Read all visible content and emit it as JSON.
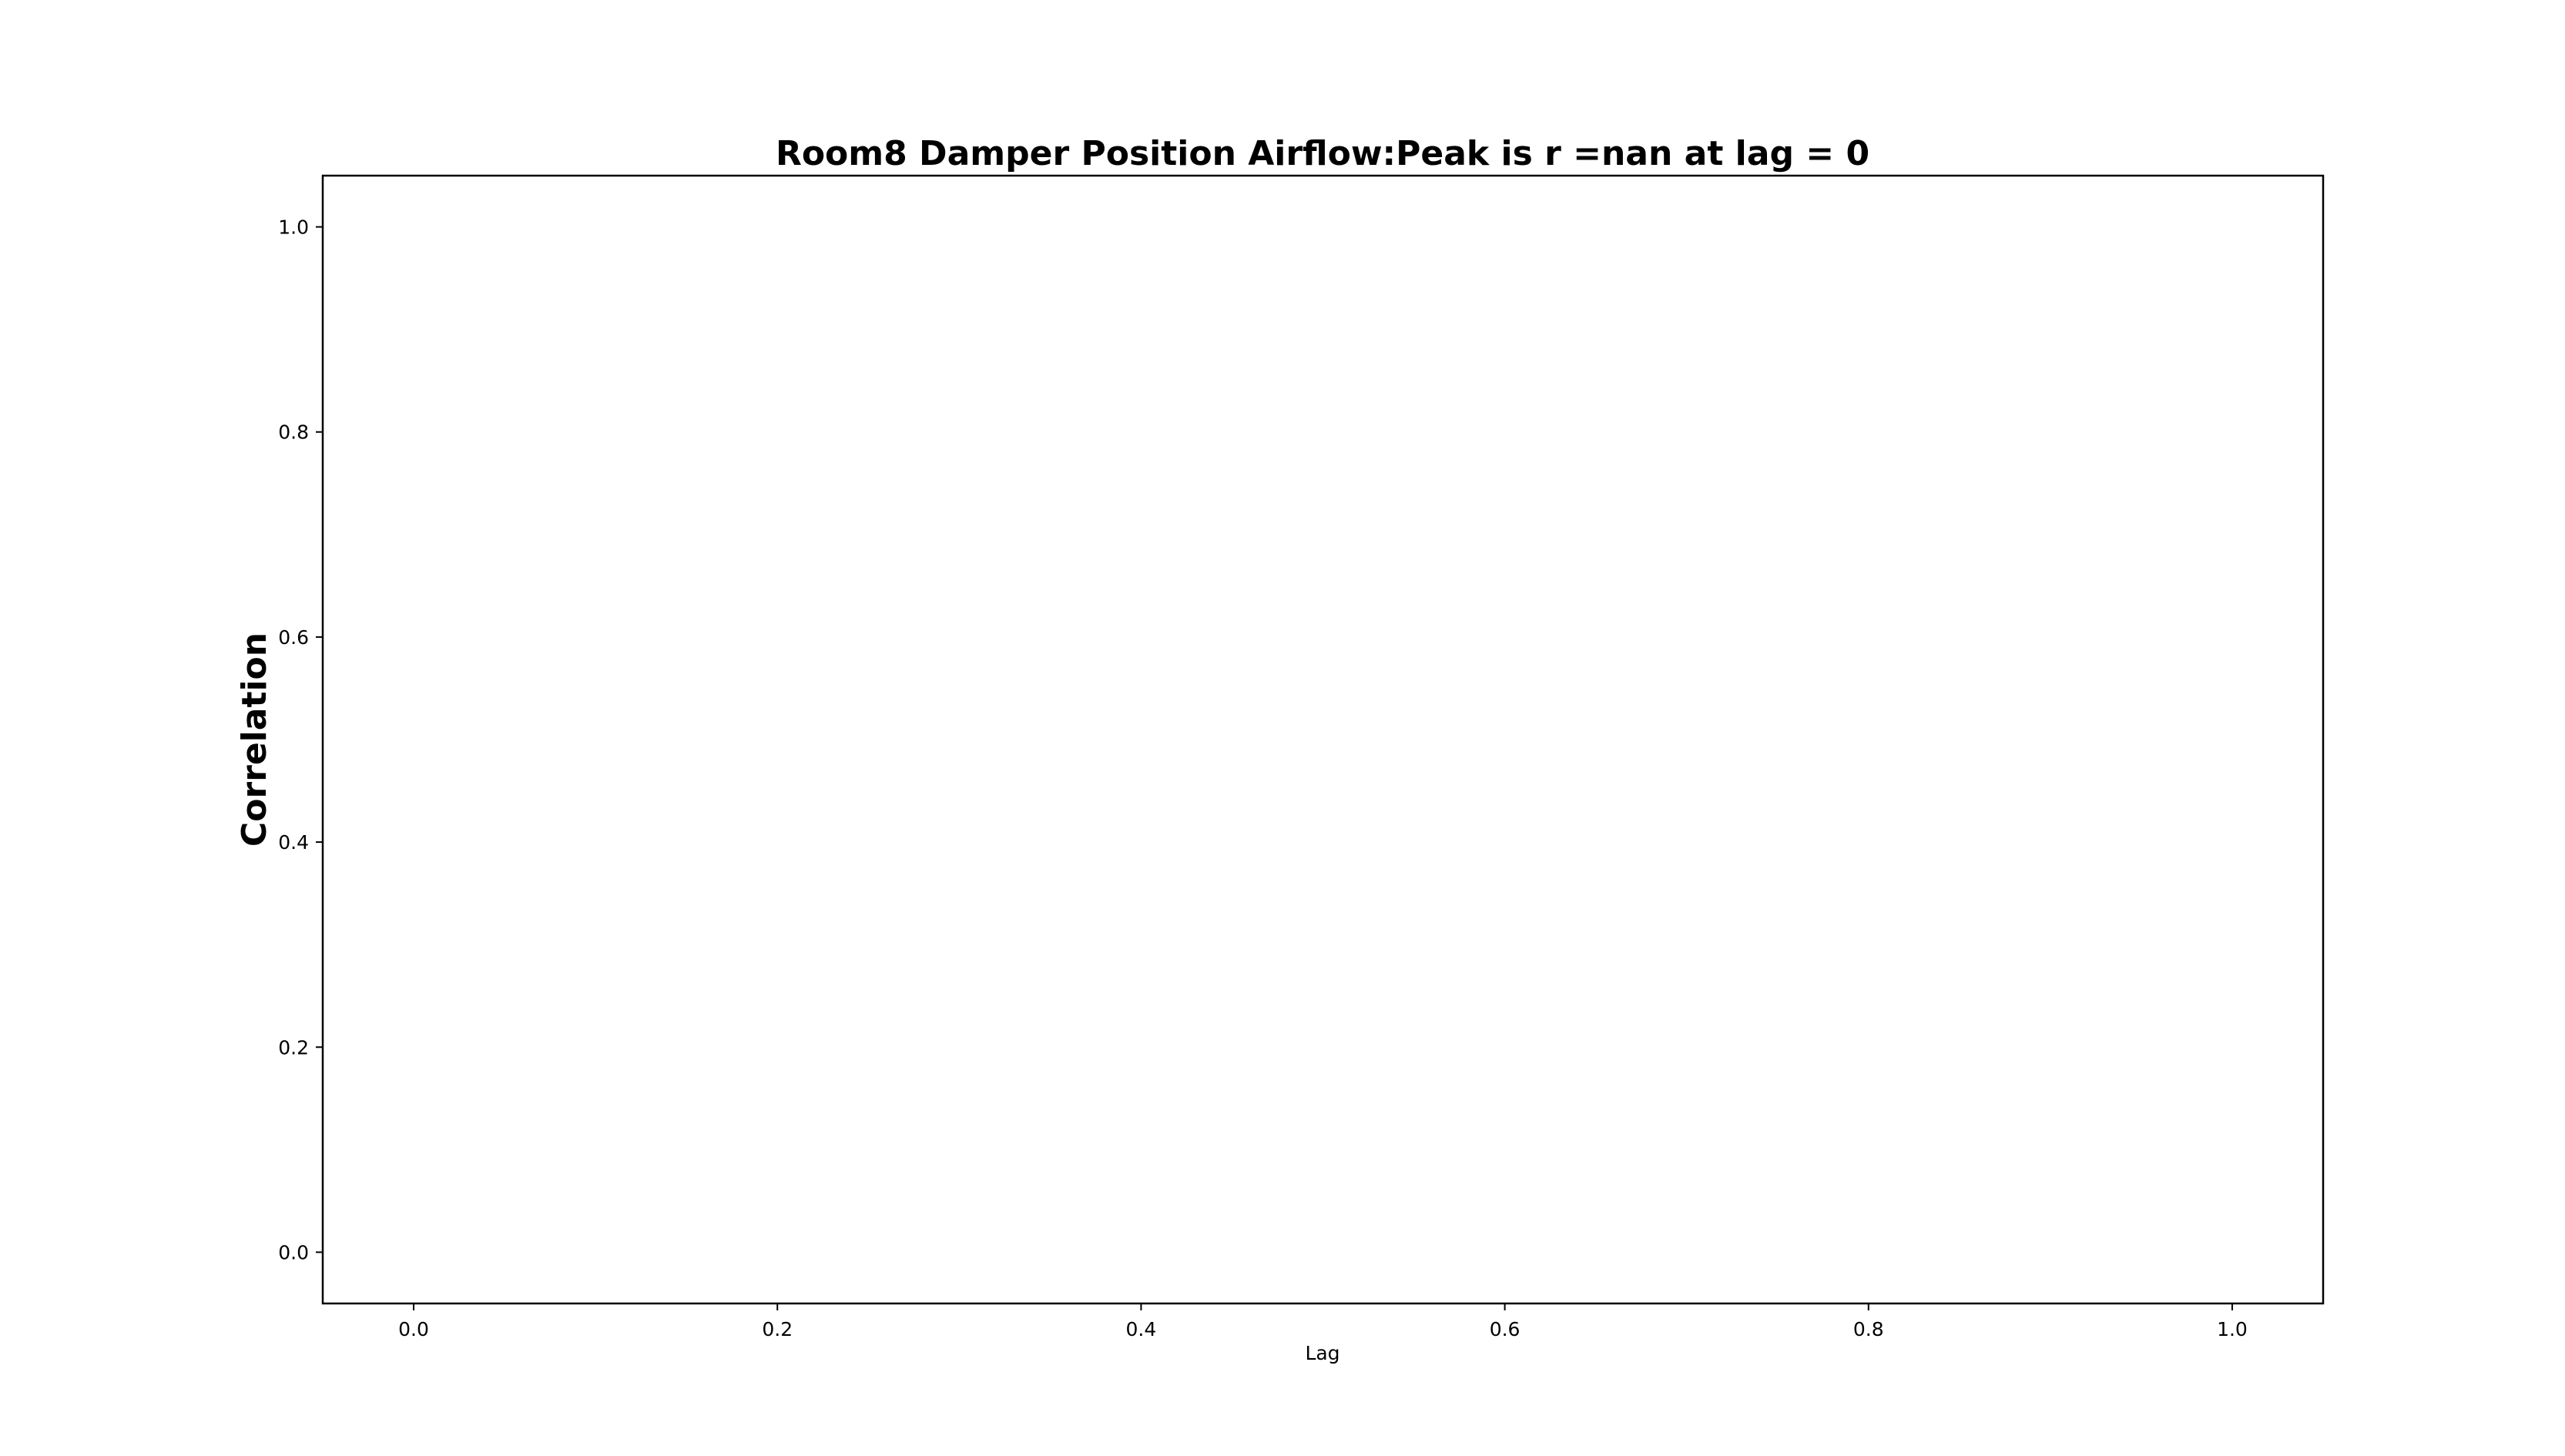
{
  "chart_data": {
    "type": "line",
    "title": "Room8 Damper Position Airflow:Peak is r =nan at lag = 0",
    "xlabel": "Lag",
    "ylabel": "Correlation",
    "xlim": [
      -0.05,
      1.05
    ],
    "ylim": [
      -0.05,
      1.05
    ],
    "x_ticks": [
      0.0,
      0.2,
      0.4,
      0.6,
      0.8,
      1.0
    ],
    "x_tick_labels": [
      "0.0",
      "0.2",
      "0.4",
      "0.6",
      "0.8",
      "1.0"
    ],
    "y_ticks": [
      0.0,
      0.2,
      0.4,
      0.6,
      0.8,
      1.0
    ],
    "y_tick_labels": [
      "0.0",
      "0.2",
      "0.4",
      "0.6",
      "0.8",
      "1.0"
    ],
    "grid": false,
    "series": [
      {
        "values": []
      }
    ],
    "colors": {
      "axes": "#000000",
      "background": "#ffffff"
    }
  }
}
